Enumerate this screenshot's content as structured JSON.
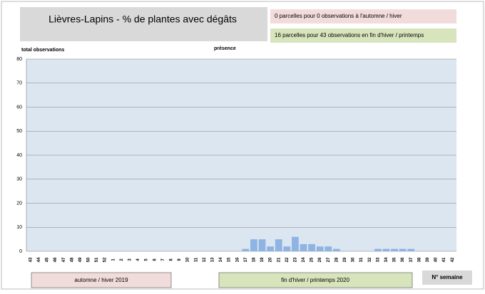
{
  "chart_data": {
    "type": "bar",
    "title": "Lièvres-Lapins - % de plantes avec dégâts",
    "annotations": {
      "autumn_summary": "0 parcelles pour 0 observations à l'automne / hiver",
      "spring_summary": "16 parcelles pour 43 observations en fin d'hiver / printemps",
      "left_label": "total observations",
      "center_label": "présence",
      "autumn_period": "automne / hiver 2019",
      "spring_period": "fin d'hiver / printemps 2020",
      "x_axis_label": "N° semaine"
    },
    "categories": [
      43,
      44,
      45,
      46,
      47,
      48,
      49,
      50,
      51,
      52,
      1,
      2,
      3,
      4,
      5,
      6,
      7,
      8,
      9,
      10,
      11,
      12,
      13,
      14,
      15,
      16,
      17,
      18,
      19,
      20,
      21,
      22,
      23,
      24,
      25,
      26,
      27,
      28,
      29,
      30,
      31,
      32,
      33,
      34,
      35,
      36,
      37,
      38,
      39,
      40,
      41,
      42
    ],
    "values": [
      0,
      0,
      0,
      0,
      0,
      0,
      0,
      0,
      0,
      0,
      0,
      0,
      0,
      0,
      0,
      0,
      0,
      0,
      0,
      0,
      0,
      0,
      0,
      0,
      0,
      0,
      1,
      5,
      5,
      2,
      5,
      2,
      6,
      3,
      3,
      2,
      2,
      1,
      0,
      0,
      0,
      0,
      1,
      1,
      1,
      1,
      1,
      0,
      0,
      0,
      0,
      0
    ],
    "color": "#8db4e2",
    "ylim": [
      0,
      80
    ],
    "yticks": [
      0,
      10,
      20,
      30,
      40,
      50,
      60,
      70,
      80
    ],
    "grid": true
  }
}
